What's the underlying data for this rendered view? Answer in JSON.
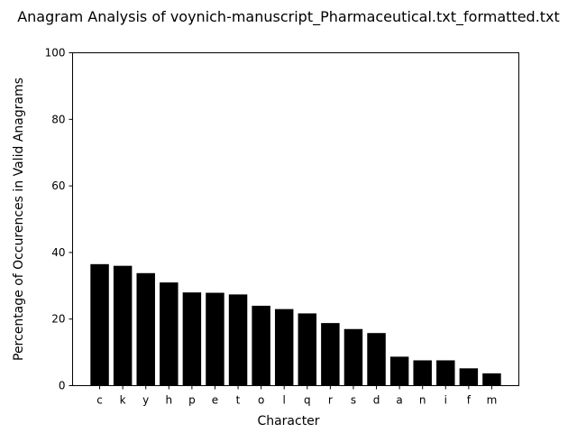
{
  "chart_data": {
    "type": "bar",
    "title": "Anagram Analysis of voynich-manuscript_Pharmaceutical.txt_formatted.txt",
    "xlabel": "Character",
    "ylabel": "Percentage of Occurences in Valid Anagrams",
    "ylim": [
      0,
      100
    ],
    "yticks": [
      0,
      20,
      40,
      60,
      80,
      100
    ],
    "categories": [
      "c",
      "k",
      "y",
      "h",
      "p",
      "e",
      "t",
      "o",
      "l",
      "q",
      "r",
      "s",
      "d",
      "a",
      "n",
      "i",
      "f",
      "m"
    ],
    "values": [
      36.5,
      36.0,
      33.8,
      31.0,
      28.0,
      27.9,
      27.4,
      24.0,
      23.0,
      21.7,
      18.8,
      17.0,
      15.8,
      8.7,
      7.6,
      7.6,
      5.2,
      3.7
    ],
    "bar_color": "#000000",
    "grid": false
  }
}
